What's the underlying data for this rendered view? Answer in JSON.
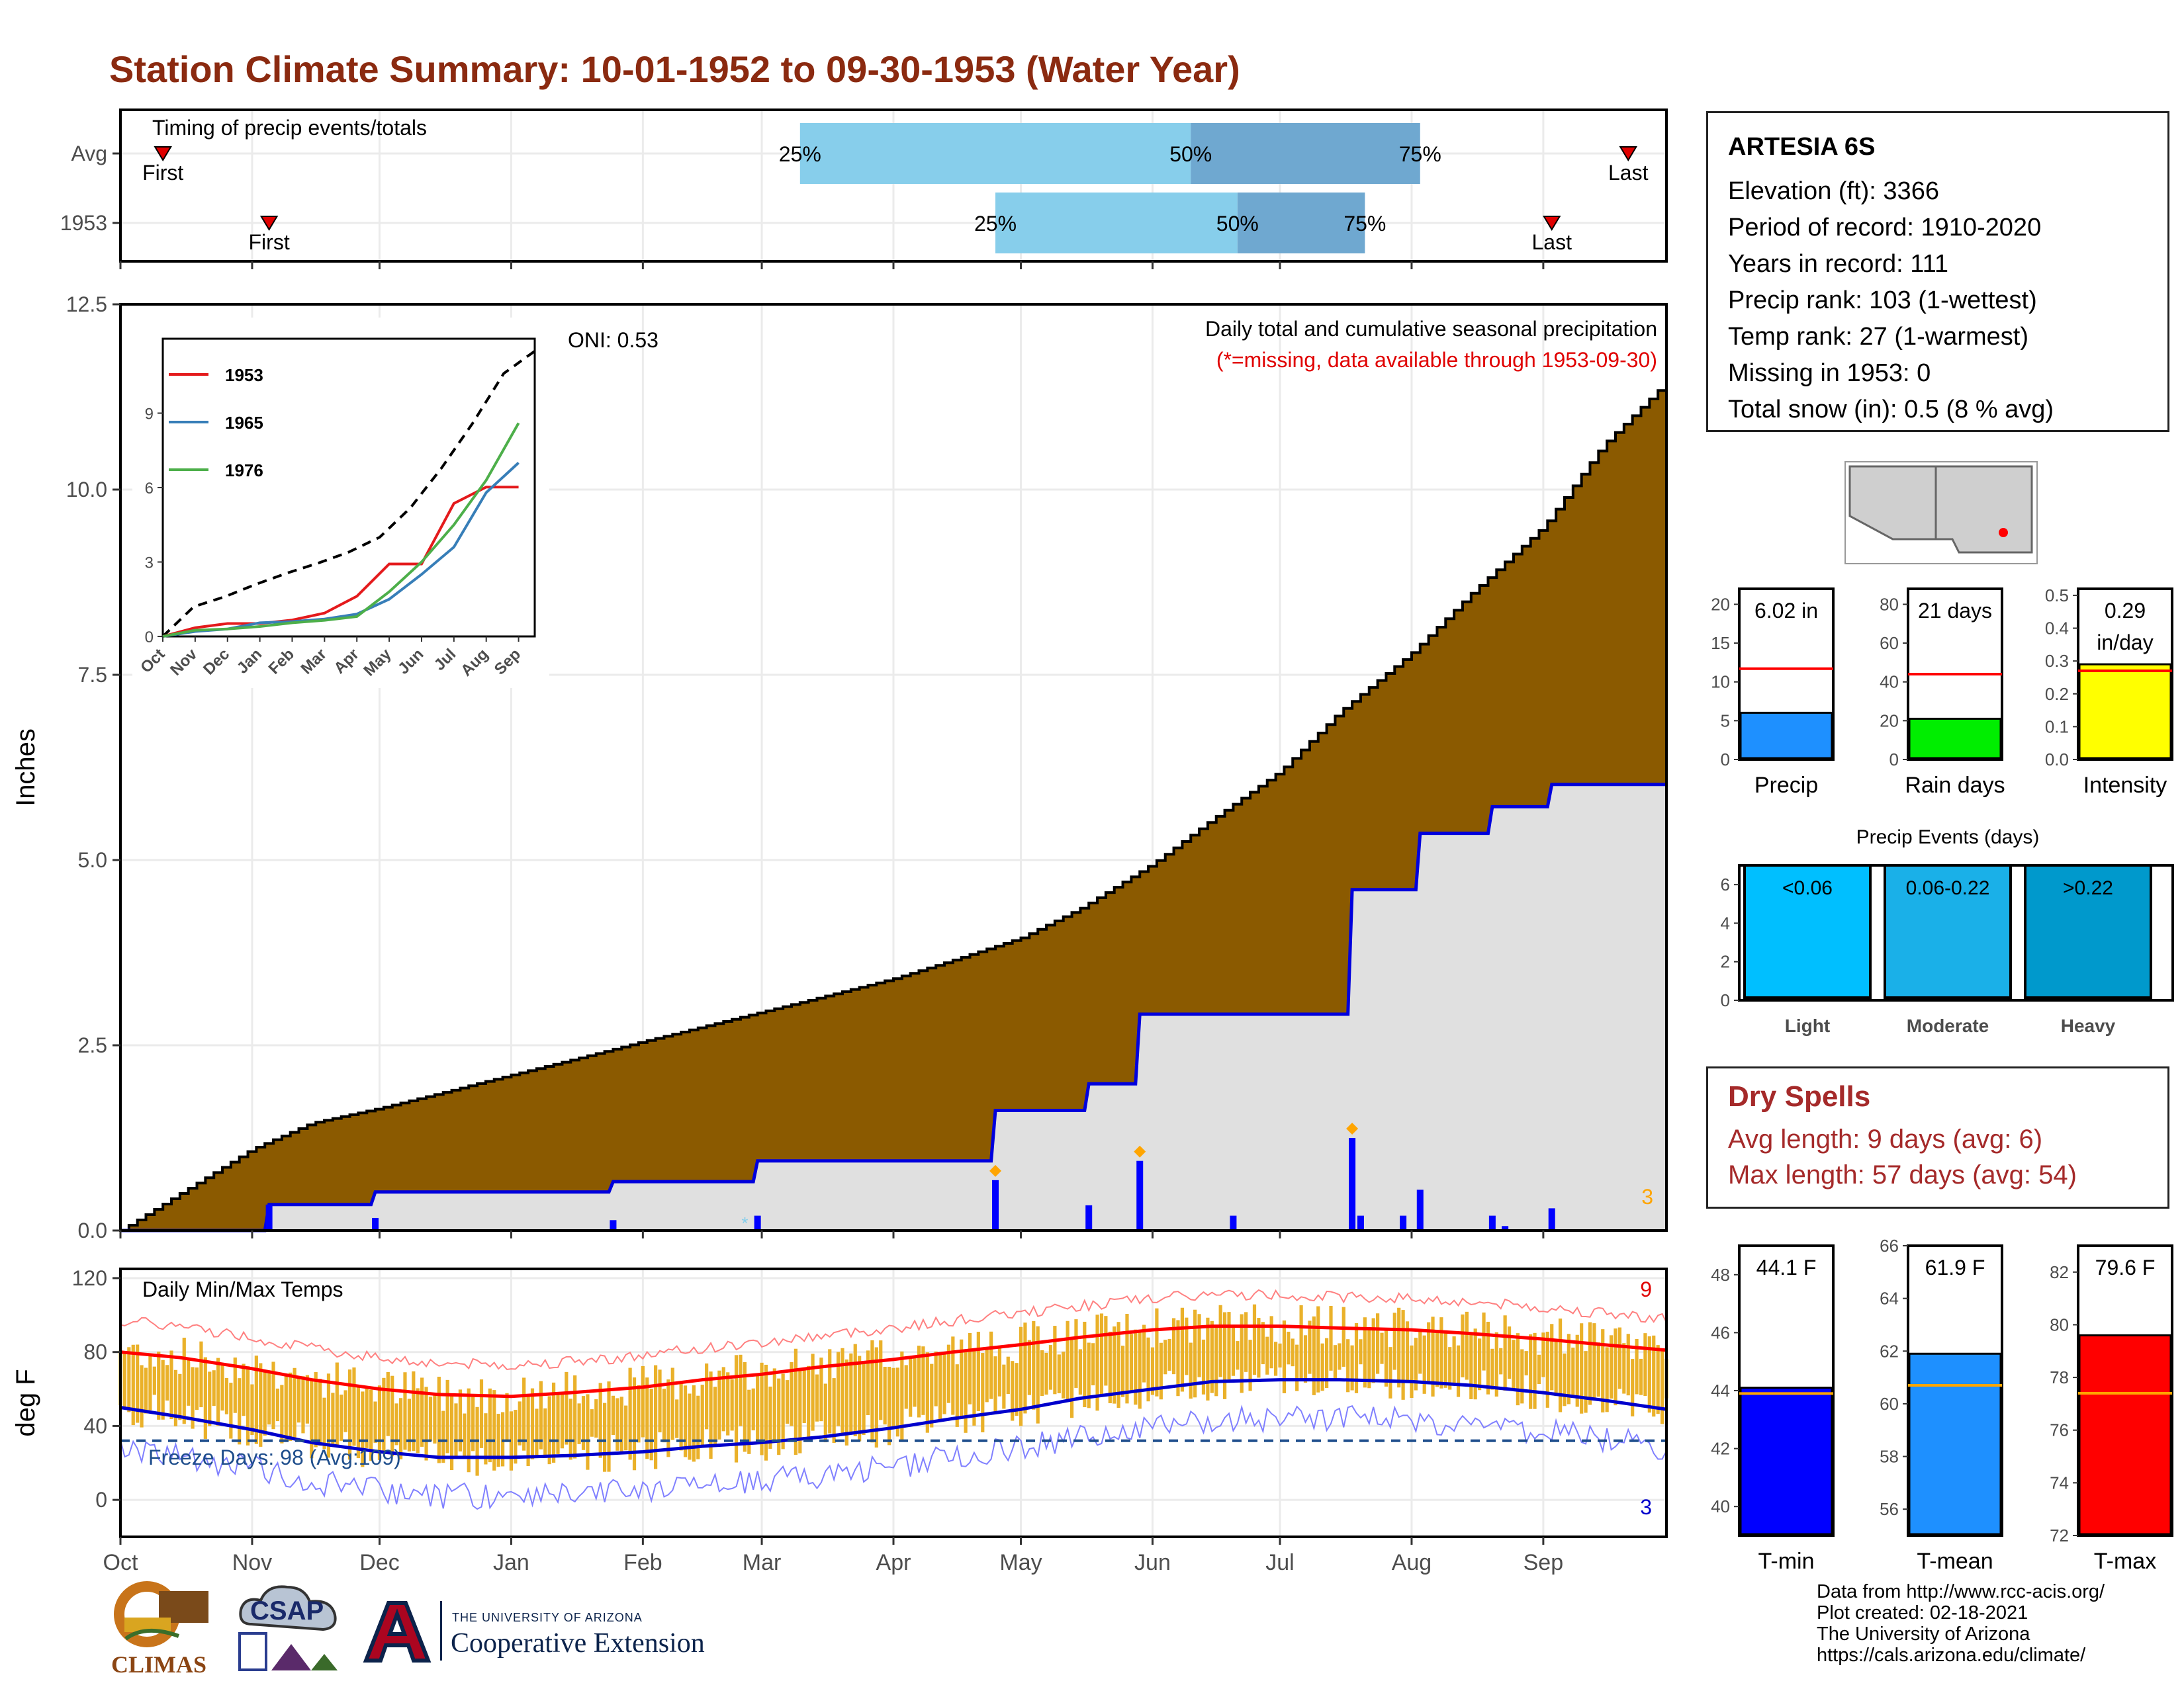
{
  "title": "Station Climate Summary: 10-01-1952 to 09-30-1953 (Water Year)",
  "station": {
    "name": "ARTESIA 6S",
    "rows": [
      "Elevation (ft): 3366",
      "Period of record: 1910-2020",
      "Years in record: 111",
      "Precip rank: 103 (1-wettest)",
      "Temp rank: 27 (1-warmest)",
      "Missing in 1953: 0",
      "Total snow (in): 0.5 (8 % avg)"
    ]
  },
  "dry_spells": {
    "title": "Dry Spells",
    "avg": "Avg length: 9 days (avg: 6)",
    "max": "Max length: 57 days (avg: 54)"
  },
  "credits": [
    "Data from http://www.rcc-acis.org/",
    "Plot created: 02-18-2021",
    "The University of Arizona",
    "https://cals.arizona.edu/climate/"
  ],
  "logos": {
    "climas": "CLIMAS",
    "csap": "CSAP",
    "ua_small": "THE UNIVERSITY OF ARIZONA",
    "ua_big": "Cooperative Extension"
  },
  "months": [
    "Oct",
    "Nov",
    "Dec",
    "Jan",
    "Feb",
    "Mar",
    "Apr",
    "May",
    "Jun",
    "Jul",
    "Aug",
    "Sep"
  ],
  "timing": {
    "title": "Timing of precip events/totals",
    "rows": [
      "Avg",
      "1953"
    ],
    "first_label": "First",
    "last_label": "Last",
    "avg": {
      "first": "1952-10-11",
      "p25": "1953-03-10",
      "p50": "1953-06-10",
      "p75": "1953-08-03",
      "last": "1953-09-21"
    },
    "y1953": {
      "first": "1952-11-05",
      "p25": "1953-04-25",
      "p50": "1953-06-21",
      "p75": "1953-07-21",
      "last": "1953-09-03"
    },
    "pct_labels": [
      "25%",
      "50%",
      "75%"
    ]
  },
  "chart_data": [
    {
      "type": "area",
      "name": "precip",
      "ylabel": "Inches",
      "ylim": [
        0,
        12.5
      ],
      "yticks": [
        "0.0",
        "2.5",
        "5.0",
        "7.5",
        "10.0",
        "12.5"
      ],
      "annotation": "Daily total and cumulative seasonal precipitation",
      "annotation2": "(*=missing, data available through 1953-09-30)",
      "oni": "ONI: 0.53",
      "corner_count": "3",
      "avg_cumulative": {
        "x": [
          "1952-10-01",
          "1952-10-15",
          "1952-11-01",
          "1952-11-15",
          "1952-12-01",
          "1952-12-15",
          "1953-01-01",
          "1953-01-15",
          "1953-02-01",
          "1953-02-15",
          "1953-03-01",
          "1953-03-15",
          "1953-04-01",
          "1953-04-15",
          "1953-05-01",
          "1953-05-15",
          "1953-06-01",
          "1953-06-15",
          "1953-07-01",
          "1953-07-15",
          "1953-08-01",
          "1953-08-15",
          "1953-09-01",
          "1953-09-15",
          "1953-09-30"
        ],
        "y": [
          0.0,
          0.5,
          1.1,
          1.45,
          1.65,
          1.85,
          2.1,
          2.3,
          2.55,
          2.75,
          2.95,
          3.15,
          3.4,
          3.65,
          3.95,
          4.35,
          4.95,
          5.55,
          6.2,
          7.0,
          7.8,
          8.6,
          9.5,
          10.6,
          11.45
        ]
      },
      "cumulative_1953": {
        "x": [
          "1952-10-01",
          "1952-11-04",
          "1952-11-05",
          "1952-11-29",
          "1952-11-30",
          "1953-01-24",
          "1953-01-25",
          "1953-02-27",
          "1953-02-28",
          "1953-04-24",
          "1953-04-25",
          "1953-05-16",
          "1953-05-17",
          "1953-05-28",
          "1953-05-29",
          "1953-07-17",
          "1953-07-18",
          "1953-08-02",
          "1953-08-03",
          "1953-08-19",
          "1953-08-20",
          "1953-09-02",
          "1953-09-03",
          "1953-09-30"
        ],
        "y": [
          0.0,
          0.0,
          0.35,
          0.35,
          0.52,
          0.52,
          0.66,
          0.66,
          0.94,
          0.94,
          1.62,
          1.62,
          1.98,
          1.98,
          2.92,
          2.92,
          4.6,
          4.6,
          5.36,
          5.36,
          5.72,
          5.72,
          6.02,
          6.02
        ]
      },
      "daily_1953": [
        {
          "x": "1952-11-05",
          "y": 0.35
        },
        {
          "x": "1952-11-30",
          "y": 0.17
        },
        {
          "x": "1953-01-25",
          "y": 0.14
        },
        {
          "x": "1953-02-28",
          "y": 0.2
        },
        {
          "x": "1953-04-25",
          "y": 0.68
        },
        {
          "x": "1953-05-17",
          "y": 0.34
        },
        {
          "x": "1953-05-29",
          "y": 0.94
        },
        {
          "x": "1953-06-20",
          "y": 0.2
        },
        {
          "x": "1953-07-18",
          "y": 1.25
        },
        {
          "x": "1953-07-20",
          "y": 0.2
        },
        {
          "x": "1953-07-30",
          "y": 0.2
        },
        {
          "x": "1953-08-03",
          "y": 0.55
        },
        {
          "x": "1953-08-20",
          "y": 0.2
        },
        {
          "x": "1953-08-23",
          "y": 0.06
        },
        {
          "x": "1953-09-03",
          "y": 0.3
        }
      ],
      "record_markers": [
        "1953-04-25",
        "1953-05-29",
        "1953-07-18"
      ]
    },
    {
      "type": "line",
      "name": "inset",
      "xticks": [
        "Oct",
        "Nov",
        "Dec",
        "Jan",
        "Feb",
        "Mar",
        "Apr",
        "May",
        "Jun",
        "Jul",
        "Aug",
        "Sep"
      ],
      "ylim": [
        0,
        12
      ],
      "yticks": [
        "0",
        "3",
        "6",
        "9"
      ],
      "series": [
        {
          "name": "1953",
          "color": "#e41a1c",
          "y": [
            0,
            0.35,
            0.52,
            0.52,
            0.66,
            0.94,
            1.62,
            2.92,
            2.92,
            5.36,
            6.02,
            6.02
          ]
        },
        {
          "name": "1965",
          "color": "#377eb8",
          "y": [
            0,
            0.2,
            0.3,
            0.55,
            0.6,
            0.7,
            0.9,
            1.5,
            2.5,
            3.6,
            5.8,
            7.0
          ]
        },
        {
          "name": "1976",
          "color": "#4daf4a",
          "y": [
            0,
            0.25,
            0.3,
            0.4,
            0.55,
            0.65,
            0.8,
            1.8,
            3.0,
            4.5,
            6.3,
            8.6
          ]
        }
      ],
      "avg": [
        0,
        1.2,
        1.6,
        2.1,
        2.55,
        2.95,
        3.4,
        4.0,
        5.2,
        6.8,
        8.6,
        10.6,
        11.5
      ]
    },
    {
      "type": "line",
      "name": "temperature",
      "title": "Daily Min/Max Temps",
      "ylabel": "deg F",
      "ylim": [
        -20,
        125
      ],
      "yticks": [
        "0",
        "40",
        "80",
        "120"
      ],
      "freeze_label": "Freeze Days: 98 (Avg:109)",
      "freeze_line": 32,
      "max_record_count": "9",
      "min_record_count": "3",
      "avg_max": {
        "x": [
          "1952-10-01",
          "1952-10-15",
          "1952-11-01",
          "1952-11-15",
          "1952-12-01",
          "1952-12-15",
          "1953-01-01",
          "1953-01-15",
          "1953-02-01",
          "1953-02-15",
          "1953-03-01",
          "1953-03-15",
          "1953-04-01",
          "1953-04-15",
          "1953-05-01",
          "1953-05-15",
          "1953-06-01",
          "1953-06-15",
          "1953-07-01",
          "1953-07-15",
          "1953-08-01",
          "1953-08-15",
          "1953-09-01",
          "1953-09-15",
          "1953-09-30"
        ],
        "y": [
          80,
          77,
          71,
          65,
          60,
          57,
          56,
          58,
          61,
          65,
          68,
          72,
          76,
          80,
          84,
          88,
          92,
          94,
          94,
          93,
          92,
          90,
          87,
          84,
          81
        ]
      },
      "avg_min": {
        "x": [
          "1952-10-01",
          "1952-10-15",
          "1952-11-01",
          "1952-11-15",
          "1952-12-01",
          "1952-12-15",
          "1953-01-01",
          "1953-01-15",
          "1953-02-01",
          "1953-02-15",
          "1953-03-01",
          "1953-03-15",
          "1953-04-01",
          "1953-04-15",
          "1953-05-01",
          "1953-05-15",
          "1953-06-01",
          "1953-06-15",
          "1953-07-01",
          "1953-07-15",
          "1953-08-01",
          "1953-08-15",
          "1953-09-01",
          "1953-09-15",
          "1953-09-30"
        ],
        "y": [
          50,
          45,
          38,
          31,
          26,
          23,
          23,
          24,
          26,
          29,
          31,
          34,
          39,
          44,
          49,
          55,
          60,
          64,
          65,
          65,
          64,
          62,
          58,
          54,
          49
        ]
      }
    },
    {
      "type": "bar",
      "name": "precip_total",
      "xlabel": "Precip",
      "value": 6.02,
      "label": "6.02 in",
      "avg": 11.7,
      "ylim": [
        0,
        22
      ],
      "yticks": [
        "0",
        "5",
        "10",
        "15",
        "20"
      ],
      "color": "#1e90ff"
    },
    {
      "type": "bar",
      "name": "rain_days",
      "xlabel": "Rain days",
      "value": 21,
      "label": "21 days",
      "avg": 44,
      "ylim": [
        0,
        88
      ],
      "yticks": [
        "0",
        "20",
        "40",
        "60",
        "80"
      ],
      "color": "#00ee00"
    },
    {
      "type": "bar",
      "name": "intensity",
      "xlabel": "Intensity",
      "value": 0.29,
      "label": "0.29",
      "label2": "in/day",
      "avg": 0.27,
      "ylim": [
        0,
        0.52
      ],
      "yticks": [
        "0.0",
        "0.1",
        "0.2",
        "0.3",
        "0.4",
        "0.5"
      ],
      "color": "#ffff00"
    },
    {
      "type": "bar",
      "name": "precip_events",
      "title": "Precip Events (days)",
      "categories": [
        "Light",
        "Moderate",
        "Heavy"
      ],
      "bin_labels": [
        "<0.06",
        "0.06-0.22",
        ">0.22"
      ],
      "values": [
        7,
        7,
        7
      ],
      "ylim": [
        0,
        7
      ],
      "yticks": [
        "0",
        "2",
        "4",
        "6"
      ],
      "colors": [
        "#00bfff",
        "#1ab0e8",
        "#0099cc"
      ]
    },
    {
      "type": "bar",
      "name": "tmin",
      "xlabel": "T-min",
      "value": 44.1,
      "label": "44.1 F",
      "avg": 43.9,
      "ylim": [
        39,
        49
      ],
      "yticks": [
        "40",
        "42",
        "44",
        "46",
        "48"
      ],
      "color": "#0000ff"
    },
    {
      "type": "bar",
      "name": "tmean",
      "xlabel": "T-mean",
      "value": 61.9,
      "label": "61.9 F",
      "avg": 60.7,
      "ylim": [
        55,
        66
      ],
      "yticks": [
        "56",
        "58",
        "60",
        "62",
        "64",
        "66"
      ],
      "color": "#1e90ff"
    },
    {
      "type": "bar",
      "name": "tmax",
      "xlabel": "T-max",
      "value": 79.6,
      "label": "79.6 F",
      "avg": 77.4,
      "ylim": [
        72,
        83
      ],
      "yticks": [
        "72",
        "74",
        "76",
        "78",
        "80",
        "82"
      ],
      "color": "#ff0000"
    }
  ]
}
